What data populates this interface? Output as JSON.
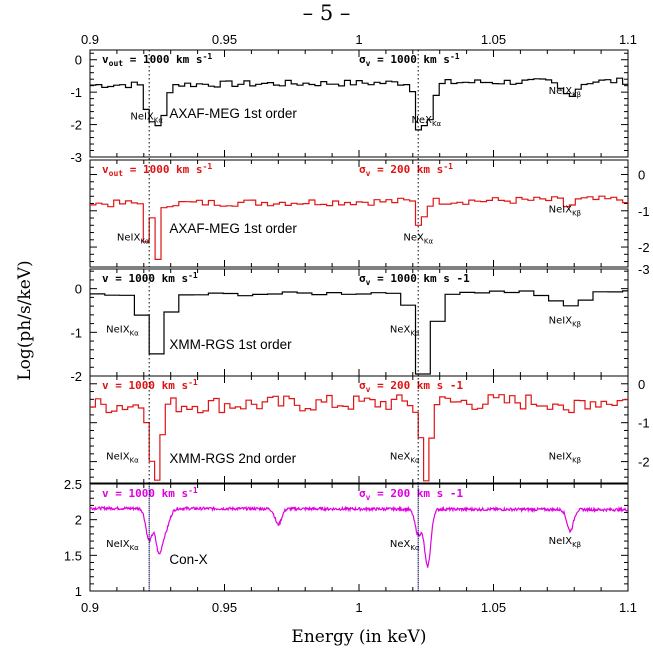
{
  "page_number": "– 5 –",
  "colors": {
    "black": "#000000",
    "red": "#e01414",
    "magenta": "#e000e0"
  },
  "chart_data": {
    "type": "line",
    "xlabel": "Energy (in keV)",
    "ylabel": "Log(ph/s/keV)",
    "xlim": [
      0.9,
      1.1
    ],
    "x_ticks": [
      "0.9",
      "0.95",
      "1",
      "1.05",
      "1.1"
    ],
    "vlines": [
      0.922,
      1.022
    ],
    "panels": [
      {
        "id": "p1",
        "color": "#000000",
        "ylim": [
          -3,
          0.3
        ],
        "y_ticks": [
          0,
          -1,
          -2,
          -3
        ],
        "y_tick_labels": [
          "0",
          "-1",
          "-2",
          "-3"
        ],
        "y_axis_side": "left",
        "instrument": "AXAF-MEG 1st order",
        "param1": "v out = 1000 km s-1",
        "param2": "sigma v = 1000 km s-1",
        "param1_parts": {
          "sym": "v",
          "sub": "out",
          "text": " = 1000 km s",
          "sup": "-1"
        },
        "param2_parts": {
          "sym": "σ",
          "sub": "v",
          "text": " = 1000 km s",
          "sup": "-1"
        },
        "lines": [
          {
            "sym": "NeIX",
            "sub": "Kα",
            "x": 0.915,
            "y": -1.85
          },
          {
            "sym": "NeX",
            "sub": "Kα",
            "x": 1.0195,
            "y": -1.95
          },
          {
            "sym": "NeIX",
            "sub": "Kβ",
            "x": 1.0705,
            "y": -1.05
          }
        ],
        "baseline": -0.72,
        "step": true,
        "absorptions": [
          {
            "x": 0.922,
            "depth": 1.1,
            "width": 0.0012
          },
          {
            "x": 0.926,
            "depth": 1.4,
            "width": 0.0018
          },
          {
            "x": 1.022,
            "depth": 1.0,
            "width": 0.0012
          },
          {
            "x": 1.0255,
            "depth": 1.25,
            "width": 0.0022
          },
          {
            "x": 1.078,
            "depth": 0.4,
            "width": 0.003
          }
        ]
      },
      {
        "id": "p2",
        "color": "#e01414",
        "ylim": [
          -2.55,
          0.4
        ],
        "y_ticks": [
          0,
          -1,
          -2,
          -3
        ],
        "y_tick_labels": [
          "0",
          "-1",
          "-2",
          "-3"
        ],
        "y_axis_side": "right",
        "instrument": "AXAF-MEG 1st order",
        "param1": "v out = 1000 km s-1",
        "param2": "sigma v = 200 km s-1",
        "param1_parts": {
          "sym": "v",
          "sub": "out",
          "text": " = 1000 km s",
          "sup": "-1"
        },
        "param2_parts": {
          "sym": "σ",
          "sub": "v",
          "text": " = 200 km s",
          "sup": "-1"
        },
        "lines": [
          {
            "sym": "NeIX",
            "sub": "Kα",
            "x": 0.91,
            "y": -1.82
          },
          {
            "sym": "NeX",
            "sub": "Kα",
            "x": 1.0165,
            "y": -1.82
          },
          {
            "sym": "NeIX",
            "sub": "Kβ",
            "x": 1.0705,
            "y": -1.05
          }
        ],
        "baseline": -0.75,
        "step": true,
        "absorptions": [
          {
            "x": 0.9215,
            "depth": 1.3,
            "width": 0.0008
          },
          {
            "x": 0.925,
            "depth": 1.7,
            "width": 0.001
          },
          {
            "x": 1.022,
            "depth": 0.6,
            "width": 0.0008
          },
          {
            "x": 1.0245,
            "depth": 0.4,
            "width": 0.001
          },
          {
            "x": 1.078,
            "depth": 0.2,
            "width": 0.0015
          }
        ]
      },
      {
        "id": "p3",
        "color": "#000000",
        "ylim": [
          -2,
          0.45
        ],
        "y_ticks": [
          0,
          -1,
          -2
        ],
        "y_tick_labels": [
          "0",
          "-1",
          "-2"
        ],
        "y_axis_side": "left",
        "instrument": "XMM-RGS 1st order",
        "param1": "v = 1000 km s-1",
        "param2": "sigma v = 1000 km s -1",
        "param1_parts": {
          "sym": "v",
          "sub": "",
          "text": " = 1000 km s",
          "sup": "-1"
        },
        "param2_parts": {
          "sym": "σ",
          "sub": "v",
          "text": " = 1000 km s -1",
          "sup": ""
        },
        "lines": [
          {
            "sym": "NeIX",
            "sub": "Kα",
            "x": 0.906,
            "y": -1.0
          },
          {
            "sym": "NeX",
            "sub": "Kα",
            "x": 1.0115,
            "y": -1.0
          },
          {
            "sym": "NeIX",
            "sub": "Kβ",
            "x": 1.0705,
            "y": -0.8
          }
        ],
        "baseline": -0.1,
        "step": true,
        "absorptions": [
          {
            "x": 0.922,
            "depth": 0.55,
            "width": 0.003
          },
          {
            "x": 0.926,
            "depth": 1.1,
            "width": 0.003
          },
          {
            "x": 1.022,
            "depth": 1.0,
            "width": 0.002
          },
          {
            "x": 1.0255,
            "depth": 1.45,
            "width": 0.003
          },
          {
            "x": 1.078,
            "depth": 0.35,
            "width": 0.006
          }
        ]
      },
      {
        "id": "p4",
        "color": "#e01414",
        "ylim": [
          -2.55,
          0.2
        ],
        "y_ticks": [
          0,
          -1,
          -2
        ],
        "y_tick_labels": [
          "0",
          "-1",
          "-2"
        ],
        "y_axis_side": "right",
        "instrument": "XMM-RGS 2nd order",
        "param1": "v = 1000 km s-1",
        "param2": "sigma v = 200 km s -1",
        "param1_parts": {
          "sym": "v",
          "sub": "",
          "text": " = 1000 km s",
          "sup": "-1"
        },
        "param2_parts": {
          "sym": "σ",
          "sub": "v",
          "text": " = 200 km s -1",
          "sup": ""
        },
        "lines": [
          {
            "sym": "NeIX",
            "sub": "Kα",
            "x": 0.906,
            "y": -1.95
          },
          {
            "sym": "NeX",
            "sub": "Kα",
            "x": 1.0115,
            "y": -1.95
          },
          {
            "sym": "NeIX",
            "sub": "Kβ",
            "x": 1.0705,
            "y": -1.95
          }
        ],
        "baseline": -0.5,
        "step": true,
        "absorptions": [
          {
            "x": 0.9225,
            "depth": 1.4,
            "width": 0.0008
          },
          {
            "x": 0.9255,
            "depth": 2.3,
            "width": 0.001
          },
          {
            "x": 1.0225,
            "depth": 1.0,
            "width": 0.0008
          },
          {
            "x": 1.0255,
            "depth": 2.3,
            "width": 0.001
          },
          {
            "x": 1.078,
            "depth": 0.6,
            "width": 0.0012
          }
        ]
      },
      {
        "id": "p5",
        "color": "#e000e0",
        "ylim": [
          1,
          2.5
        ],
        "y_ticks": [
          1,
          1.5,
          2,
          2.5
        ],
        "y_tick_labels": [
          "1",
          "1.5",
          "2",
          "2.5"
        ],
        "y_axis_side": "left",
        "instrument": "Con-X",
        "param1": "v = 1000 km s-1",
        "param2": "sigma v = 200 km s -1",
        "param1_parts": {
          "sym": "v",
          "sub": "",
          "text": " = 1000 km s",
          "sup": "-1"
        },
        "param2_parts": {
          "sym": "σ",
          "sub": "v",
          "text": " = 200 km s -1",
          "sup": ""
        },
        "lines": [
          {
            "sym": "NeIX",
            "sub": "Kα",
            "x": 0.906,
            "y": 1.62
          },
          {
            "sym": "NeX",
            "sub": "Kα",
            "x": 1.0115,
            "y": 1.62
          },
          {
            "sym": "NeIX",
            "sub": "Kβ",
            "x": 1.0705,
            "y": 1.66
          }
        ],
        "baseline": 2.15,
        "step": false,
        "absorptions": [
          {
            "x": 0.922,
            "depth": 0.45,
            "width": 0.0012
          },
          {
            "x": 0.9255,
            "depth": 0.55,
            "width": 0.0012
          },
          {
            "x": 0.928,
            "depth": 0.3,
            "width": 0.0015
          },
          {
            "x": 0.97,
            "depth": 0.22,
            "width": 0.0012
          },
          {
            "x": 1.022,
            "depth": 0.35,
            "width": 0.0012
          },
          {
            "x": 1.0255,
            "depth": 0.8,
            "width": 0.0012
          },
          {
            "x": 1.0785,
            "depth": 0.3,
            "width": 0.0012
          }
        ]
      }
    ]
  }
}
